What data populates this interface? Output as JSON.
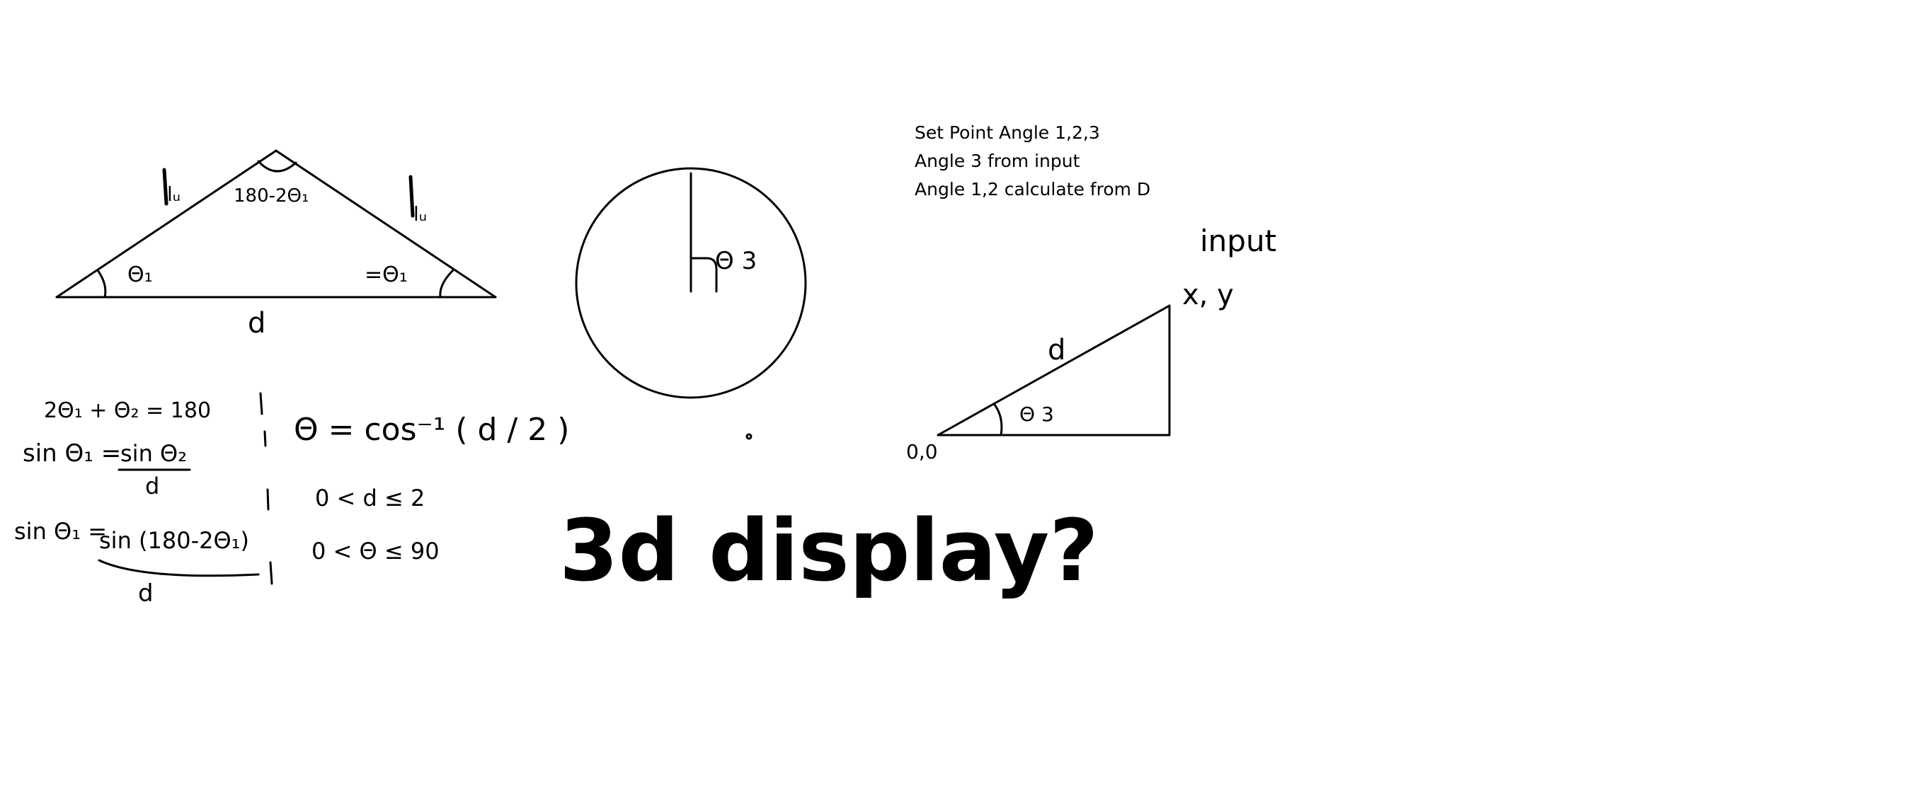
{
  "notes": {
    "line1": "Set Point Angle 1,2,3",
    "line2": "Angle 3 from input",
    "line3": "Angle 1,2 calculate from D"
  },
  "triangle": {
    "left_side_label": "lᵤ",
    "right_side_label": "lᵤ",
    "apex_label": "180-2Θ₁",
    "left_angle_label": "Θ₁",
    "right_angle_label": "=Θ₁",
    "base_label": "d"
  },
  "circle": {
    "angle_label": "Θ 3"
  },
  "right_triangle": {
    "input_label": "input",
    "point_label": "x, y",
    "origin_label": "0,0",
    "hyp_label": "d",
    "angle_label": "Θ 3"
  },
  "equations": {
    "eq1": "2Θ₁ + Θ₂ = 180",
    "eq2_lhs": "sin Θ₁ =",
    "eq2_num": "sin Θ₂",
    "eq2_den": "d",
    "eq3_lhs": "sin Θ₁ =",
    "eq3_num": "sin (180-2Θ₁)",
    "eq3_den": "d",
    "theta_formula": "Θ = cos⁻¹ ( d / 2 )",
    "range_d": "0 < d ≤ 2",
    "range_theta": "0 < Θ ≤ 90"
  },
  "question": "3d display?"
}
